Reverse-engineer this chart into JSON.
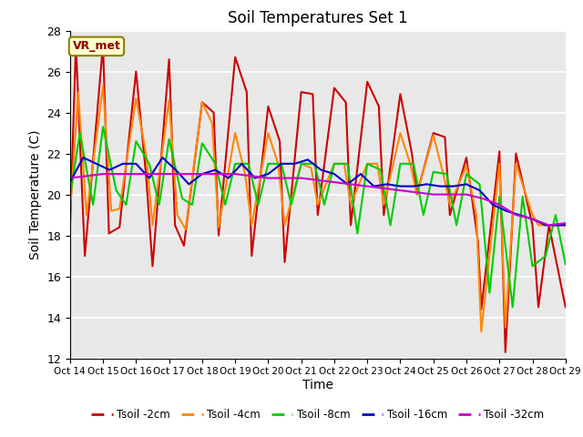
{
  "title": "Soil Temperatures Set 1",
  "xlabel": "Time",
  "ylabel": "Soil Temperature (C)",
  "ylim": [
    12,
    28
  ],
  "xlim": [
    0,
    15
  ],
  "x_tick_labels": [
    "Oct 14",
    "Oct 15",
    "Oct 16",
    "Oct 17",
    "Oct 18",
    "Oct 19",
    "Oct 20",
    "Oct 21",
    "Oct 22",
    "Oct 23",
    "Oct 24",
    "Oct 25",
    "Oct 26",
    "Oct 27",
    "Oct 28",
    "Oct 29"
  ],
  "background_color": "#e8e8e8",
  "annotation": "VR_met",
  "series": {
    "Tsoil -2cm": {
      "color": "#cc0000",
      "x": [
        0,
        0.18,
        0.45,
        1.0,
        1.18,
        1.5,
        2.0,
        2.3,
        2.5,
        3.0,
        3.18,
        3.45,
        4.0,
        4.35,
        4.5,
        5.0,
        5.35,
        5.5,
        6.0,
        6.35,
        6.5,
        7.0,
        7.35,
        7.5,
        8.0,
        8.35,
        8.5,
        9.0,
        9.35,
        9.5,
        10.0,
        10.35,
        10.5,
        11.0,
        11.35,
        11.5,
        12.0,
        12.35,
        12.45,
        13.0,
        13.18,
        13.5,
        14.0,
        14.18,
        14.5,
        15.0
      ],
      "y": [
        18.3,
        27.3,
        17.0,
        27.3,
        18.1,
        18.4,
        26.0,
        21.0,
        16.5,
        26.6,
        18.5,
        17.5,
        24.5,
        24.0,
        18.0,
        26.7,
        25.0,
        17.0,
        24.3,
        22.6,
        16.7,
        25.0,
        24.9,
        19.0,
        25.2,
        24.5,
        18.5,
        25.5,
        24.3,
        19.0,
        24.9,
        22.0,
        20.0,
        23.0,
        22.8,
        19.0,
        21.8,
        17.7,
        14.4,
        22.1,
        12.3,
        22.0,
        18.5,
        14.5,
        18.5,
        14.5
      ]
    },
    "Tsoil -4cm": {
      "color": "#ff8800",
      "x": [
        0,
        0.25,
        0.5,
        1.0,
        1.25,
        1.5,
        2.0,
        2.3,
        2.5,
        3.0,
        3.25,
        3.5,
        4.0,
        4.3,
        4.5,
        5.0,
        5.3,
        5.5,
        6.0,
        6.3,
        6.5,
        7.0,
        7.3,
        7.5,
        8.0,
        8.3,
        8.5,
        9.0,
        9.3,
        9.5,
        10.0,
        10.3,
        10.5,
        11.0,
        11.3,
        11.5,
        12.0,
        12.3,
        12.45,
        13.0,
        13.18,
        13.5,
        14.0,
        14.18,
        14.5,
        15.0
      ],
      "y": [
        19.0,
        25.0,
        19.0,
        25.3,
        19.2,
        19.3,
        24.7,
        22.0,
        18.5,
        24.6,
        19.0,
        18.3,
        24.5,
        23.5,
        18.4,
        23.0,
        21.0,
        18.5,
        23.0,
        21.5,
        18.5,
        21.5,
        21.3,
        19.5,
        21.5,
        21.5,
        19.5,
        21.5,
        21.5,
        19.5,
        23.0,
        21.5,
        20.0,
        22.9,
        21.0,
        19.5,
        21.4,
        19.0,
        13.3,
        21.5,
        13.5,
        21.5,
        19.0,
        18.5,
        18.5,
        18.5
      ]
    },
    "Tsoil -8cm": {
      "color": "#00cc00",
      "x": [
        0,
        0.3,
        0.7,
        1.0,
        1.4,
        1.7,
        2.0,
        2.4,
        2.7,
        3.0,
        3.4,
        3.7,
        4.0,
        4.4,
        4.7,
        5.0,
        5.4,
        5.7,
        6.0,
        6.4,
        6.7,
        7.0,
        7.4,
        7.7,
        8.0,
        8.4,
        8.7,
        9.0,
        9.4,
        9.7,
        10.0,
        10.4,
        10.7,
        11.0,
        11.4,
        11.7,
        12.0,
        12.4,
        12.7,
        13.0,
        13.4,
        13.7,
        14.0,
        14.4,
        14.7,
        15.0
      ],
      "y": [
        19.9,
        23.0,
        19.5,
        23.3,
        20.2,
        19.5,
        22.6,
        21.5,
        19.5,
        22.7,
        19.8,
        19.5,
        22.5,
        21.5,
        19.5,
        21.5,
        21.5,
        19.5,
        21.5,
        21.5,
        19.5,
        21.5,
        21.5,
        19.5,
        21.5,
        21.5,
        18.1,
        21.5,
        21.2,
        18.5,
        21.5,
        21.5,
        19.0,
        21.1,
        21.0,
        18.5,
        21.0,
        20.5,
        15.2,
        19.9,
        14.5,
        19.9,
        16.5,
        17.0,
        19.0,
        16.6
      ]
    },
    "Tsoil -16cm": {
      "color": "#0000cc",
      "x": [
        0,
        0.4,
        0.8,
        1.2,
        1.6,
        2.0,
        2.4,
        2.8,
        3.2,
        3.6,
        4.0,
        4.4,
        4.8,
        5.2,
        5.6,
        6.0,
        6.4,
        6.8,
        7.2,
        7.6,
        8.0,
        8.4,
        8.8,
        9.2,
        9.6,
        10.0,
        10.4,
        10.8,
        11.2,
        11.6,
        12.0,
        12.4,
        12.8,
        13.2,
        13.6,
        14.0,
        14.4,
        14.8,
        15.0
      ],
      "y": [
        20.6,
        21.8,
        21.5,
        21.2,
        21.5,
        21.5,
        20.8,
        21.8,
        21.2,
        20.5,
        21.0,
        21.2,
        20.8,
        21.5,
        20.8,
        21.0,
        21.5,
        21.5,
        21.7,
        21.2,
        21.0,
        20.5,
        21.0,
        20.4,
        20.5,
        20.4,
        20.4,
        20.5,
        20.4,
        20.4,
        20.5,
        20.2,
        19.5,
        19.2,
        19.0,
        18.8,
        18.5,
        18.5,
        18.5
      ]
    },
    "Tsoil -32cm": {
      "color": "#cc00cc",
      "x": [
        0,
        1.0,
        2.0,
        3.0,
        4.0,
        5.0,
        6.0,
        7.0,
        8.0,
        9.0,
        10.0,
        11.0,
        12.0,
        12.5,
        13.0,
        13.5,
        14.0,
        14.5,
        15.0
      ],
      "y": [
        20.8,
        21.0,
        21.0,
        21.0,
        21.0,
        21.0,
        20.8,
        20.8,
        20.6,
        20.4,
        20.2,
        20.0,
        20.0,
        19.8,
        19.5,
        19.0,
        18.8,
        18.5,
        18.6
      ]
    }
  }
}
